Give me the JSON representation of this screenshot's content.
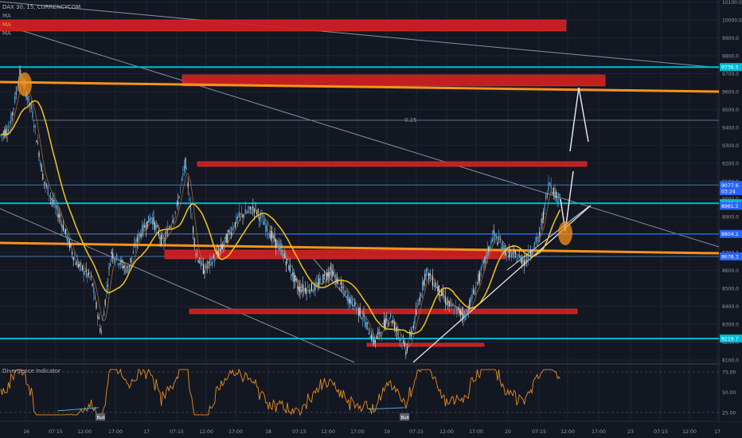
{
  "header": {
    "symbol_title": "DAX 30, 15, CURRENCYCOM",
    "ma_labels": [
      {
        "text": "MA",
        "color": "#9598a1"
      },
      {
        "text": "MA",
        "color": "#f5a623"
      },
      {
        "text": "MA",
        "color": "#9598a1"
      }
    ]
  },
  "price_axis": {
    "ticks": [
      "10100.0",
      "10000.0",
      "9900.0",
      "9800.0",
      "9700.0",
      "9600.0",
      "9500.0",
      "9400.0",
      "9300.0",
      "9200.0",
      "9100.0",
      "9000.0",
      "8900.0",
      "8800.0",
      "8700.0",
      "8600.0",
      "8500.0",
      "8400.0",
      "8300.0",
      "8200.0",
      "8100.0"
    ],
    "labels": [
      {
        "text": "9736.5",
        "value": 9736.5,
        "color": "#00bcd4"
      },
      {
        "text": "9077.6",
        "value": 9077.6,
        "color": "#2962ff"
      },
      {
        "text": "03:24",
        "value": 9043,
        "color": "#2962ff"
      },
      {
        "text": "8975.7",
        "value": 8975.7,
        "color": "#00bcd4"
      },
      {
        "text": "8961.5",
        "value": 8961.5,
        "color": "#2962ff"
      },
      {
        "text": "8804.2",
        "value": 8804.2,
        "color": "#2962ff"
      },
      {
        "text": "8678.3",
        "value": 8678.3,
        "color": "#2962ff"
      },
      {
        "text": "8219.7",
        "value": 8219.7,
        "color": "#00bcd4"
      }
    ]
  },
  "fib_label": "0.25",
  "indicator": {
    "title": "Divergence Indicator",
    "ticks": [
      "75.00",
      "50.00",
      "25.00"
    ],
    "bull_labels": [
      "Bull",
      "Bull"
    ]
  },
  "time_axis": {
    "labels": [
      "16",
      "07:15",
      "12:00",
      "17:00",
      "17",
      "07:15",
      "12:00",
      "17:00",
      "18",
      "07:15",
      "12:00",
      "17:00",
      "19",
      "07:15",
      "12:00",
      "17:00",
      "20",
      "07:15",
      "12:00",
      "17:00",
      "23",
      "07:15",
      "12:00",
      "17"
    ]
  },
  "colors": {
    "background": "#131722",
    "cyan_level": "#00bcd4",
    "orange_trend": "#f7931a",
    "red_zone": "#d42020",
    "ma_yellow": "#f5c518",
    "rsi_orange": "#e88c1f"
  }
}
